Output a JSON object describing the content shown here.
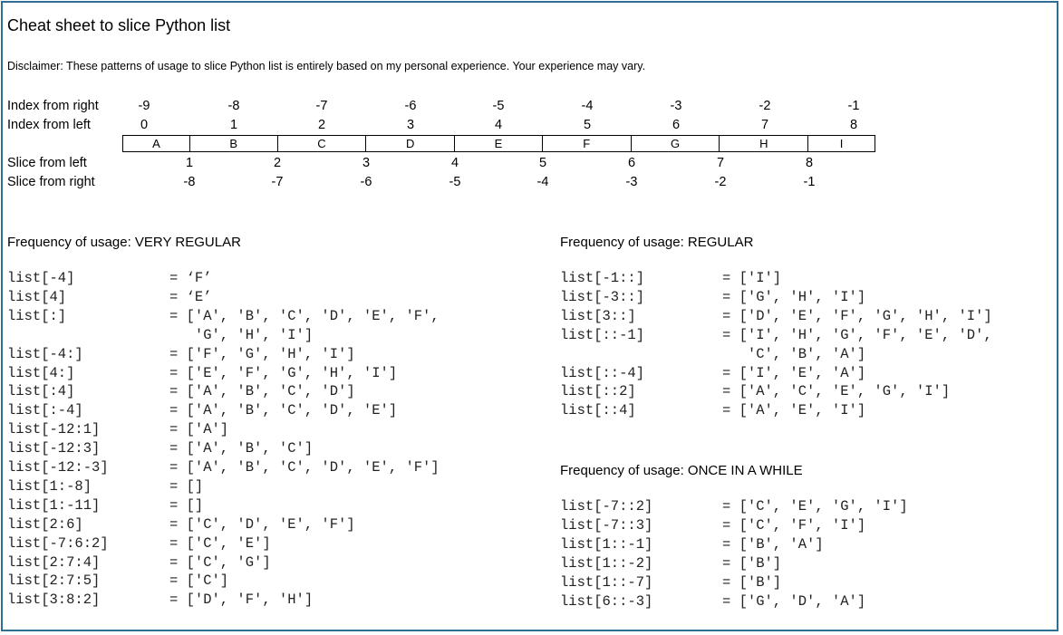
{
  "title": "Cheat sheet to slice Python list",
  "disclaimer": "Disclaimer: These patterns of usage to slice Python list is entirely based on my personal experience. Your experience may vary.",
  "index_table": {
    "index_from_right_label": "Index from right",
    "index_from_left_label": "Index from left",
    "slice_from_left_label": "Slice from left",
    "slice_from_right_label": "Slice from right",
    "index_from_right": [
      "-9",
      "-8",
      "-7",
      "-6",
      "-5",
      "-4",
      "-3",
      "-2",
      "-1"
    ],
    "index_from_left": [
      "0",
      "1",
      "2",
      "3",
      "4",
      "5",
      "6",
      "7",
      "8"
    ],
    "elements": [
      "A",
      "B",
      "C",
      "D",
      "E",
      "F",
      "G",
      "H",
      "I"
    ],
    "slice_from_left": [
      "1",
      "2",
      "3",
      "4",
      "5",
      "6",
      "7",
      "8"
    ],
    "slice_from_right": [
      "-8",
      "-7",
      "-6",
      "-5",
      "-4",
      "-3",
      "-2",
      "-1"
    ]
  },
  "sections": {
    "very_regular": {
      "heading": "Frequency of usage:  VERY REGULAR",
      "rows": [
        {
          "expr": "list[-4]",
          "result": "= ‘F’"
        },
        {
          "expr": "list[4]",
          "result": "= ‘E’"
        },
        {
          "expr": "list[:]",
          "result": "= ['A', 'B', 'C', 'D', 'E', 'F',"
        },
        {
          "expr": "",
          "result": "   'G', 'H', 'I']"
        },
        {
          "expr": "list[-4:]",
          "result": "= ['F', 'G', 'H', 'I']"
        },
        {
          "expr": "list[4:]",
          "result": "= ['E', 'F', 'G', 'H', 'I']"
        },
        {
          "expr": "list[:4]",
          "result": "= ['A', 'B', 'C', 'D']"
        },
        {
          "expr": "list[:-4]",
          "result": "= ['A', 'B', 'C', 'D', 'E']"
        },
        {
          "expr": "list[-12:1]",
          "result": "= ['A']"
        },
        {
          "expr": "list[-12:3]",
          "result": "= ['A', 'B', 'C']"
        },
        {
          "expr": "list[-12:-3]",
          "result": "= ['A', 'B', 'C', 'D', 'E', 'F']"
        },
        {
          "expr": "list[1:-8]",
          "result": "= []"
        },
        {
          "expr": "list[1:-11]",
          "result": "= []"
        },
        {
          "expr": "list[2:6]",
          "result": "= ['C', 'D', 'E', 'F']"
        },
        {
          "expr": "list[-7:6:2]",
          "result": "= ['C', 'E']"
        },
        {
          "expr": "list[2:7:4]",
          "result": "= ['C', 'G']"
        },
        {
          "expr": "list[2:7:5]",
          "result": "= ['C']"
        },
        {
          "expr": "list[3:8:2]",
          "result": "= ['D', 'F', 'H']"
        }
      ]
    },
    "regular": {
      "heading": "Frequency of usage:  REGULAR",
      "rows": [
        {
          "expr": "list[-1::]",
          "result": "= ['I']"
        },
        {
          "expr": "list[-3::]",
          "result": "= ['G', 'H', 'I']"
        },
        {
          "expr": "list[3::]",
          "result": "= ['D', 'E', 'F', 'G', 'H', 'I']"
        },
        {
          "expr": "list[::-1]",
          "result": "= ['I', 'H', 'G', 'F', 'E', 'D',"
        },
        {
          "expr": "",
          "result": "   'C', 'B', 'A']"
        },
        {
          "expr": "list[::-4]",
          "result": "= ['I', 'E', 'A']"
        },
        {
          "expr": "list[::2]",
          "result": "= ['A', 'C', 'E', 'G', 'I']"
        },
        {
          "expr": "list[::4]",
          "result": "= ['A', 'E', 'I']"
        }
      ]
    },
    "once_in_a_while": {
      "heading": "Frequency of usage:  ONCE IN A WHILE",
      "rows": [
        {
          "expr": "list[-7::2]",
          "result": "= ['C', 'E', 'G', 'I']"
        },
        {
          "expr": "list[-7::3]",
          "result": "= ['C', 'F', 'I']"
        },
        {
          "expr": "list[1::-1]",
          "result": "= ['B', 'A']"
        },
        {
          "expr": "list[1::-2]",
          "result": "= ['B']"
        },
        {
          "expr": "list[1::-7]",
          "result": "= ['B']"
        },
        {
          "expr": "list[6::-3]",
          "result": "= ['G', 'D', 'A']"
        }
      ]
    }
  }
}
